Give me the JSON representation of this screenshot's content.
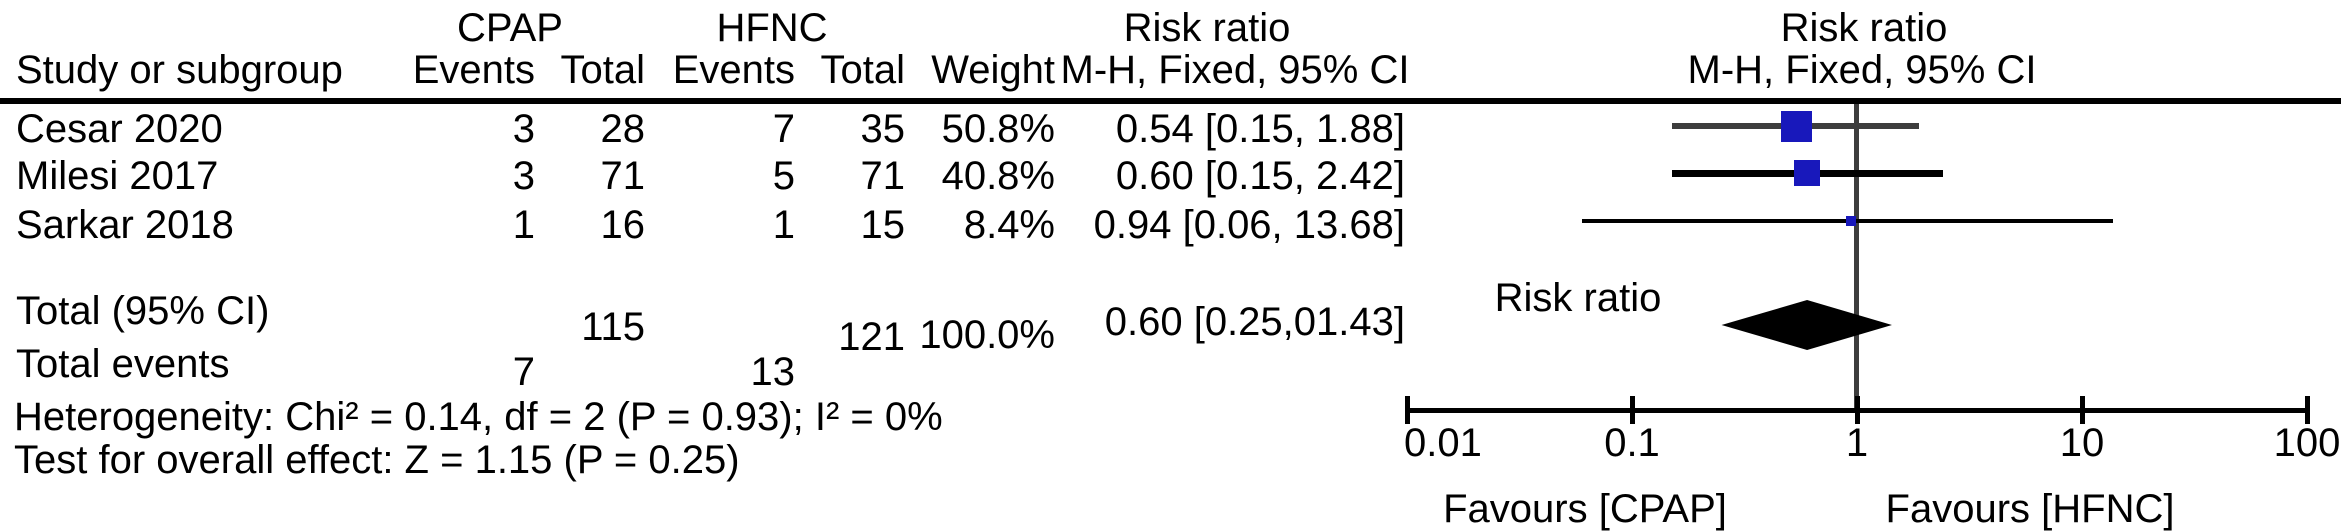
{
  "table": {
    "header": {
      "group_cpap": "CPAP",
      "group_hfnc": "HFNC",
      "risk_ratio": "Risk ratio",
      "study": "Study or subgroup",
      "events": "Events",
      "total": "Total",
      "weight": "Weight",
      "mh_fixed": "M-H, Fixed, 95% CI"
    },
    "rows": [
      {
        "study": "Cesar 2020",
        "cpap_events": "3",
        "cpap_total": "28",
        "hfnc_events": "7",
        "hfnc_total": "35",
        "weight": "50.8%",
        "rr_ci": "0.54 [0.15, 1.88]"
      },
      {
        "study": "Milesi 2017",
        "cpap_events": "3",
        "cpap_total": "71",
        "hfnc_events": "5",
        "hfnc_total": "71",
        "weight": "40.8%",
        "rr_ci": "0.60 [0.15, 2.42]"
      },
      {
        "study": "Sarkar 2018",
        "cpap_events": "1",
        "cpap_total": "16",
        "hfnc_events": "1",
        "hfnc_total": "15",
        "weight": "8.4%",
        "rr_ci": "0.94 [0.06, 13.68]"
      }
    ],
    "total_row": {
      "label": "Total (95% CI)",
      "cpap_total": "115",
      "hfnc_total": "121",
      "weight": "100.0%",
      "rr_ci": "0.60 [0.25,01.43]"
    },
    "total_events_row": {
      "label": "Total events",
      "cpap_events": "7",
      "hfnc_events": "13"
    },
    "footnotes": {
      "heterogeneity": "Heterogeneity: Chi² = 0.14, df = 2 (P = 0.93); I² = 0%",
      "overall_effect": "Test for overall effect: Z = 1.15 (P = 0.25)"
    }
  },
  "plot": {
    "header_title": "Risk ratio",
    "header_subtitle": "M-H, Fixed, 95% CI",
    "diamond_label": "Risk ratio",
    "axis_ticks": [
      "0.01",
      "0.1",
      "1",
      "10",
      "100"
    ],
    "favours_left": "Favours [CPAP]",
    "favours_right": "Favours [HFNC]",
    "colors": {
      "square": "#1818bb",
      "diamond": "#000000",
      "vline": "#3d3d3d",
      "ci_gray": "#3d3d3d",
      "ci_black": "#000000"
    }
  },
  "chart_data": {
    "type": "scatter",
    "subtype": "forest-plot",
    "title": "Risk ratio",
    "effect_measure": "M-H, Fixed, 95% CI",
    "x_scale": "log10",
    "x_ticks": [
      0.01,
      0.1,
      1,
      10,
      100
    ],
    "xlim": [
      0.01,
      100
    ],
    "null_line": 1,
    "studies": [
      {
        "name": "Cesar 2020",
        "cpap_events": 3,
        "cpap_total": 28,
        "hfnc_events": 7,
        "hfnc_total": 35,
        "weight_pct": 50.8,
        "rr": 0.54,
        "ci_low": 0.15,
        "ci_high": 1.88
      },
      {
        "name": "Milesi 2017",
        "cpap_events": 3,
        "cpap_total": 71,
        "hfnc_events": 5,
        "hfnc_total": 71,
        "weight_pct": 40.8,
        "rr": 0.6,
        "ci_low": 0.15,
        "ci_high": 2.42
      },
      {
        "name": "Sarkar 2018",
        "cpap_events": 1,
        "cpap_total": 16,
        "hfnc_events": 1,
        "hfnc_total": 15,
        "weight_pct": 8.4,
        "rr": 0.94,
        "ci_low": 0.06,
        "ci_high": 13.68
      }
    ],
    "total": {
      "rr": 0.6,
      "ci_low": 0.25,
      "ci_high": 1.43,
      "cpap_total": 115,
      "hfnc_total": 121,
      "weight_pct": 100.0
    },
    "total_events": {
      "cpap": 7,
      "hfnc": 13
    },
    "heterogeneity": {
      "chi2": 0.14,
      "df": 2,
      "p": 0.93,
      "i2_pct": 0
    },
    "overall_effect": {
      "z": 1.15,
      "p": 0.25
    },
    "favours": {
      "left": "Favours [CPAP]",
      "right": "Favours [HFNC]"
    },
    "legend_position": "none",
    "grid": false
  }
}
